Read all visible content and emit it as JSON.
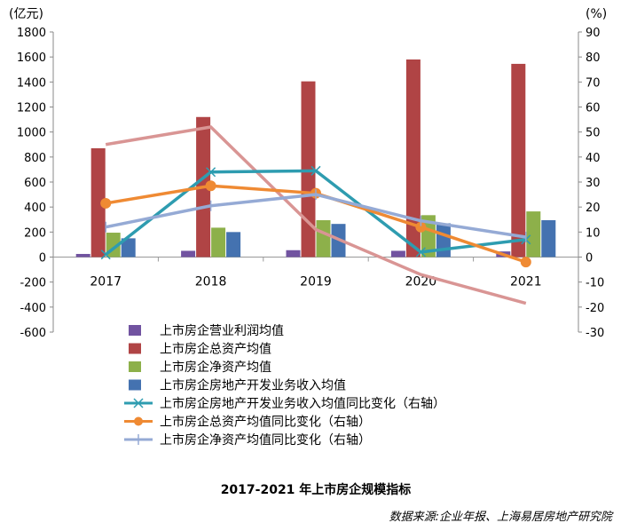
{
  "chart_data": {
    "type": "bar",
    "title": "2017-2021 年上市房企规模指标",
    "source": "数据来源:企业年报、上海易居房地产研究院",
    "left_axis_unit": "(亿元)",
    "right_axis_unit": "(%)",
    "categories": [
      "2017",
      "2018",
      "2019",
      "2020",
      "2021"
    ],
    "ylim_left": [
      -600,
      1800
    ],
    "yticks_left": [
      -600,
      -400,
      -200,
      0,
      200,
      400,
      600,
      800,
      1000,
      1200,
      1400,
      1600,
      1800
    ],
    "ylim_right": [
      -30,
      90
    ],
    "yticks_right": [
      -30,
      -20,
      -10,
      0,
      10,
      20,
      30,
      40,
      50,
      60,
      70,
      80,
      90
    ],
    "grid": false,
    "legend_position": "bottom-left",
    "bar_series": [
      {
        "name": "上市房企营业利润均值",
        "color": "#7153a0",
        "values": [
          25,
          50,
          55,
          50,
          45
        ]
      },
      {
        "name": "上市房企总资产均值",
        "color": "#b04445",
        "values": [
          870,
          1120,
          1405,
          1580,
          1545
        ]
      },
      {
        "name": "上市房企净资产均值",
        "color": "#8db04a",
        "values": [
          195,
          235,
          295,
          335,
          365
        ]
      },
      {
        "name": "上市房企房地产开发业务收入均值",
        "color": "#4472b0",
        "values": [
          150,
          200,
          265,
          270,
          295
        ]
      }
    ],
    "line_series": [
      {
        "name": "",
        "color": "#d99594",
        "marker": "none",
        "values": [
          45,
          52,
          11,
          -7,
          -18.5
        ]
      },
      {
        "name": "上市房企房地产开发业务收入均值同比变化（右轴）",
        "color": "#2e9cb0",
        "marker": "x",
        "values": [
          1,
          34,
          34.5,
          2,
          7
        ]
      },
      {
        "name": "上市房企总资产均值同比变化（右轴）",
        "color": "#ef8a33",
        "marker": "circle",
        "values": [
          21.5,
          28.5,
          25.5,
          12,
          -2
        ]
      },
      {
        "name": "上市房企净资产均值同比变化（右轴）",
        "color": "#95aad5",
        "marker": "plus",
        "values": [
          12,
          20.5,
          25,
          14.5,
          8
        ]
      }
    ]
  }
}
